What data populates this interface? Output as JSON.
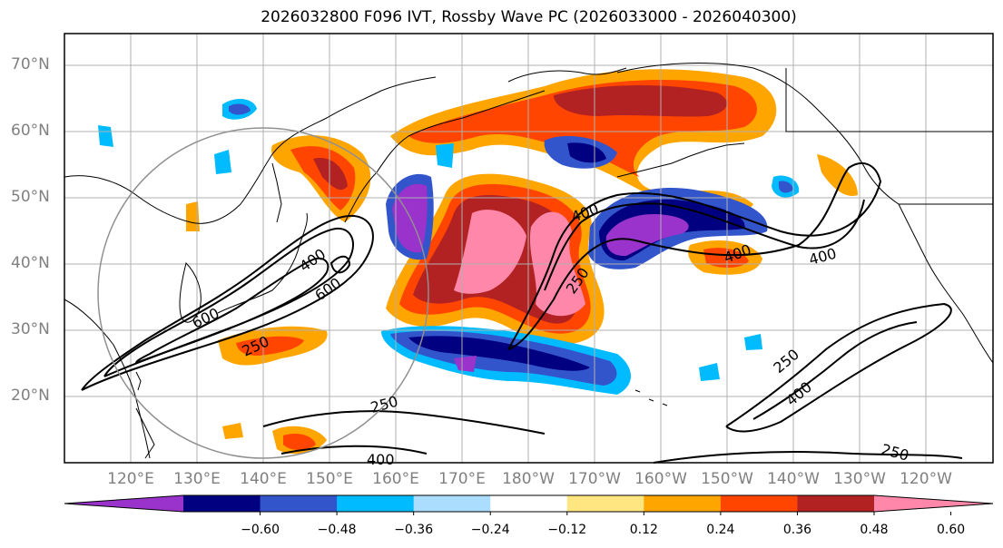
{
  "title": "2026032800 F096 IVT, Rossby Wave PC (2026033000 - 2026040300)",
  "lat_labels": [
    "70°N",
    "60°N",
    "50°N",
    "40°N",
    "30°N",
    "20°N"
  ],
  "lon_labels": [
    "120°E",
    "130°E",
    "140°E",
    "150°E",
    "160°E",
    "170°E",
    "180°W",
    "170°W",
    "160°W",
    "150°W",
    "140°W",
    "130°W",
    "120°W"
  ],
  "contour_labels": [
    "400",
    "600",
    "600",
    "250",
    "250",
    "400",
    "400",
    "250",
    "400",
    "400",
    "250",
    "400",
    "250"
  ],
  "colorbar": {
    "ticks": [
      "−0.60",
      "−0.48",
      "−0.36",
      "−0.24",
      "−0.12",
      "0.12",
      "0.24",
      "0.36",
      "0.48",
      "0.60"
    ],
    "colors": [
      "#9933cc",
      "#000080",
      "#3355cc",
      "#00bbff",
      "#aaddff",
      "#ffffff",
      "#ffe680",
      "#ffa500",
      "#ff4500",
      "#b22222",
      "#ff88aa"
    ]
  },
  "colors": {
    "land": "#ffffff",
    "coast": "#000000",
    "grid": "#b0b0b0",
    "contour": "#000000"
  }
}
